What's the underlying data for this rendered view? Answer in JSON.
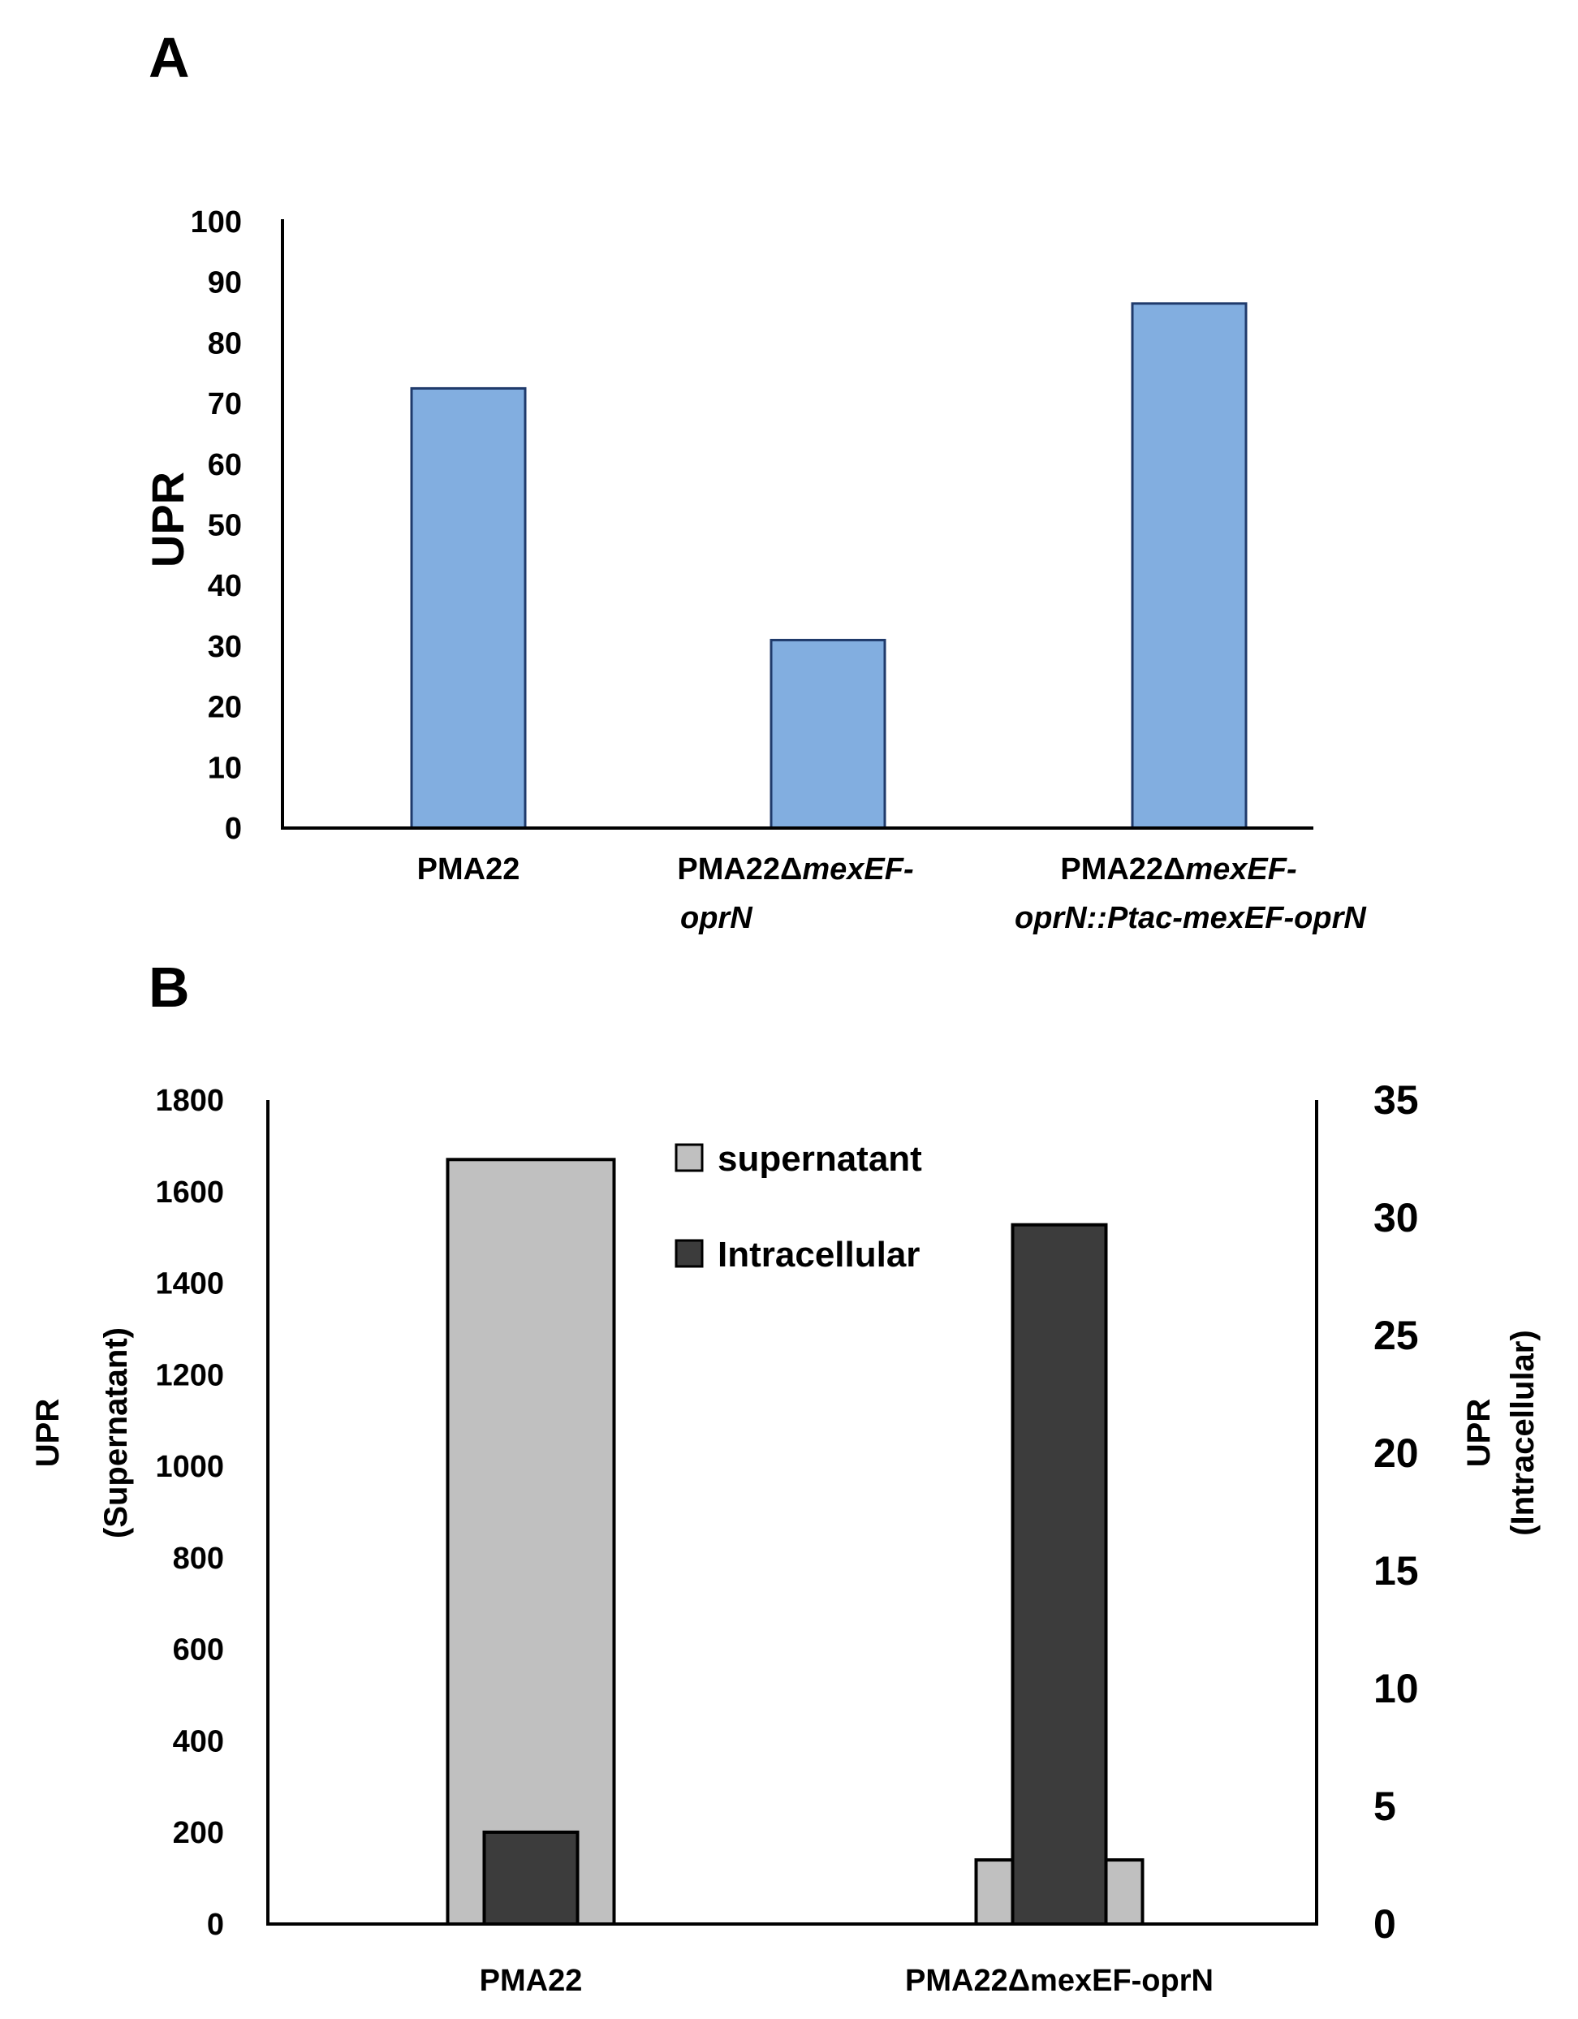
{
  "chart_data": [
    {
      "panel": "A",
      "type": "bar",
      "title": "",
      "xlabel": "",
      "ylabel": "UPR",
      "ylim": [
        0,
        100
      ],
      "yticks": [
        0,
        10,
        20,
        30,
        40,
        50,
        60,
        70,
        80,
        90,
        100
      ],
      "categories": [
        [
          {
            "t": "PMA22",
            "i": false
          }
        ],
        [
          {
            "t": "PMA22Δ",
            "i": false
          },
          {
            "t": "mexEF-",
            "i": true
          }
        ],
        [
          {
            "t": "PMA22Δ",
            "i": false
          },
          {
            "t": "mexEF-",
            "i": true
          }
        ]
      ],
      "category_line2": [
        [],
        [
          {
            "t": "oprN",
            "i": true
          }
        ],
        [
          {
            "t": "oprN::Ptac-mexEF-oprN",
            "i": true
          }
        ]
      ],
      "values": [
        72.5,
        31,
        86.5
      ],
      "color": "#82aee0",
      "edge_color": "#1f3a6b"
    },
    {
      "panel": "B",
      "type": "bar",
      "title": "",
      "xlabel": "",
      "categories": [
        "PMA22",
        "PMA22ΔmexEF-oprN"
      ],
      "ylabel_left": [
        "UPR",
        "(Supernatant)"
      ],
      "ylabel_right": [
        "UPR",
        "(Intracellular)"
      ],
      "ylim_left": [
        0,
        1800
      ],
      "yticks_left": [
        0,
        200,
        400,
        600,
        800,
        1000,
        1200,
        1400,
        1600,
        1800
      ],
      "ylim_right": [
        0,
        35
      ],
      "yticks_right": [
        0,
        5,
        10,
        15,
        20,
        25,
        30,
        35
      ],
      "series": [
        {
          "name": "supernatant",
          "axis": "left",
          "values": [
            1670,
            140
          ],
          "color": "#c0c0c0"
        },
        {
          "name": "Intracellular",
          "axis": "right",
          "values": [
            3.9,
            29.7
          ],
          "color": "#3c3c3c"
        }
      ],
      "legend_position": "top-center"
    }
  ]
}
